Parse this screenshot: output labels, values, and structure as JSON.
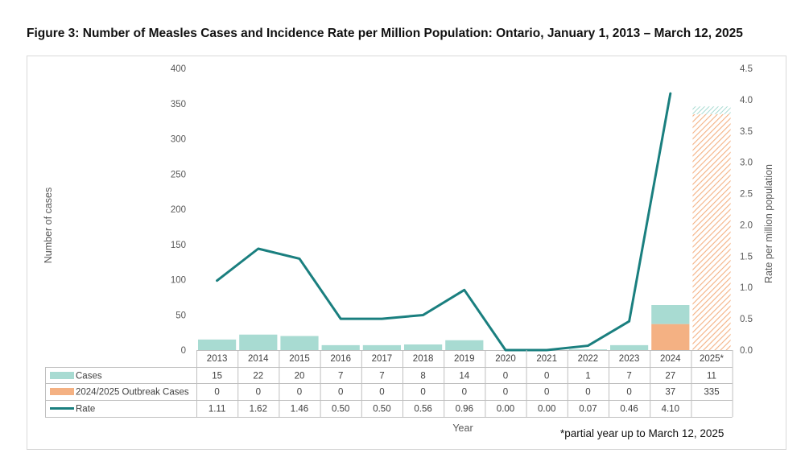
{
  "title": "Figure 3: Number of Measles Cases and Incidence Rate per Million Population: Ontario, January 1, 2013 – March 12, 2025",
  "footnote": "*partial year up to March 12, 2025",
  "chart_data": {
    "type": "bar",
    "categories": [
      "2013",
      "2014",
      "2015",
      "2016",
      "2017",
      "2018",
      "2019",
      "2020",
      "2021",
      "2022",
      "2023",
      "2024",
      "2025*"
    ],
    "series": [
      {
        "name": "Cases",
        "kind": "stacked-bar",
        "color": "#a8dbd2",
        "values": [
          15,
          22,
          20,
          7,
          7,
          8,
          14,
          0,
          0,
          1,
          7,
          27,
          11
        ]
      },
      {
        "name": "2024/2025 Outbreak Cases",
        "kind": "stacked-bar",
        "color": "#f4b183",
        "values": [
          0,
          0,
          0,
          0,
          0,
          0,
          0,
          0,
          0,
          0,
          0,
          37,
          335
        ]
      },
      {
        "name": "Rate",
        "kind": "line",
        "axis": "right",
        "color": "#1a7f7f",
        "values": [
          1.11,
          1.62,
          1.46,
          0.5,
          0.5,
          0.56,
          0.96,
          0.0,
          0.0,
          0.07,
          0.46,
          4.1,
          null
        ]
      }
    ],
    "table_values": {
      "Cases": [
        "15",
        "22",
        "20",
        "7",
        "7",
        "8",
        "14",
        "0",
        "0",
        "1",
        "7",
        "27",
        "11"
      ],
      "2024/2025 Outbreak Cases": [
        "0",
        "0",
        "0",
        "0",
        "0",
        "0",
        "0",
        "0",
        "0",
        "0",
        "0",
        "37",
        "335"
      ],
      "Rate": [
        "1.11",
        "1.62",
        "1.46",
        "0.50",
        "0.50",
        "0.56",
        "0.96",
        "0.00",
        "0.00",
        "0.07",
        "0.46",
        "4.10",
        ""
      ]
    },
    "xlabel": "Year",
    "ylabel": "Number of cases",
    "y2label": "Rate per million population",
    "ylim": [
      0,
      400
    ],
    "y2lim": [
      0,
      4.5
    ],
    "yticks": [
      "0",
      "50",
      "100",
      "150",
      "200",
      "250",
      "300",
      "350",
      "400"
    ],
    "y2ticks": [
      "0.0",
      "0.5",
      "1.0",
      "1.5",
      "2.0",
      "2.5",
      "3.0",
      "3.5",
      "4.0",
      "4.5"
    ],
    "partial_year_hatched": true,
    "grid": false,
    "legend": "data-table"
  }
}
